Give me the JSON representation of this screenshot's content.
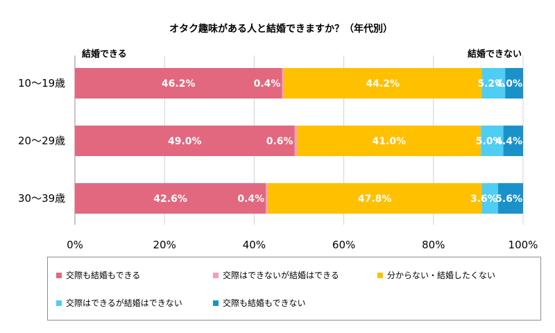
{
  "chart_data": {
    "type": "bar",
    "orientation": "horizontal",
    "stacked": true,
    "title": "オタク趣味がある人と結婚できますか？（年代別）",
    "left_label": "結婚できる",
    "right_label": "結婚できない",
    "categories": [
      "10～19歳",
      "20～29歳",
      "30～39歳"
    ],
    "series": [
      {
        "name": "交際も結婚もできる",
        "color": "#e2687f",
        "values": [
          46.2,
          49.0,
          42.6
        ],
        "labels": [
          "46.2%",
          "49.0%",
          "42.6%"
        ]
      },
      {
        "name": "交際はできないが結婚はできる",
        "color": "#f2a1b5",
        "values": [
          0.4,
          0.6,
          0.4
        ],
        "labels": [
          "0.4%",
          "0.6%",
          "0.4%"
        ]
      },
      {
        "name": "分からない・結婚したくない",
        "color": "#ffc000",
        "values": [
          44.2,
          41.0,
          47.8
        ],
        "labels": [
          "44.2%",
          "41.0%",
          "47.8%"
        ]
      },
      {
        "name": "交際はできるが結婚はできない",
        "color": "#4fcdf3",
        "values": [
          5.2,
          5.0,
          3.6
        ],
        "labels": [
          "5.2%",
          "5.0%",
          "3.6%"
        ]
      },
      {
        "name": "交際も結婚もできない",
        "color": "#1a92c9",
        "values": [
          4.0,
          4.4,
          5.6
        ],
        "labels": [
          "4.0%",
          "4.4%",
          "5.6%"
        ]
      }
    ],
    "xlim": [
      0,
      100
    ],
    "xticks": [
      "0%",
      "20%",
      "40%",
      "60%",
      "80%",
      "100%"
    ],
    "legend_position": "bottom"
  }
}
